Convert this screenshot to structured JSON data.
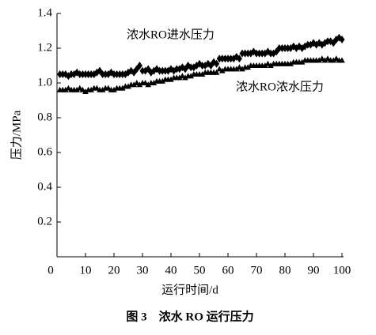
{
  "chart_data": {
    "type": "scatter",
    "caption": "图 3　浓水 RO 运行压力",
    "x_label": "运行时间/d",
    "y_label": "压力/MPa",
    "xlim": [
      0,
      100
    ],
    "xticks": [
      0,
      10,
      20,
      30,
      40,
      50,
      60,
      70,
      80,
      90,
      100
    ],
    "ylim": [
      0,
      1.4
    ],
    "yticks": [
      0.2,
      0.4,
      0.6,
      0.8,
      {
        "value": 1,
        "label": "1.0"
      },
      1.2,
      1.4
    ],
    "x": [
      1,
      2,
      3,
      4,
      5,
      6,
      7,
      8,
      9,
      10,
      11,
      12,
      13,
      14,
      15,
      16,
      17,
      18,
      19,
      20,
      21,
      22,
      23,
      24,
      25,
      26,
      27,
      28,
      29,
      30,
      31,
      32,
      33,
      34,
      35,
      36,
      37,
      38,
      39,
      40,
      41,
      42,
      43,
      44,
      45,
      46,
      47,
      48,
      49,
      50,
      51,
      52,
      53,
      54,
      55,
      56,
      57,
      58,
      59,
      60,
      61,
      62,
      63,
      64,
      65,
      66,
      67,
      68,
      69,
      70,
      71,
      72,
      73,
      74,
      75,
      76,
      77,
      78,
      79,
      80,
      81,
      82,
      83,
      84,
      85,
      86,
      87,
      88,
      89,
      90,
      91,
      92,
      93,
      94,
      95,
      96,
      97,
      98,
      99,
      100
    ],
    "series": [
      {
        "name": "浓水RO进水压力",
        "color": "#000000",
        "marker": "diamond",
        "values": [
          1.05,
          1.05,
          1.05,
          1.04,
          1.05,
          1.05,
          1.06,
          1.05,
          1.05,
          1.05,
          1.05,
          1.05,
          1.05,
          1.06,
          1.07,
          1.05,
          1.05,
          1.05,
          1.06,
          1.05,
          1.05,
          1.05,
          1.05,
          1.05,
          1.06,
          1.07,
          1.06,
          1.08,
          1.1,
          1.07,
          1.07,
          1.08,
          1.06,
          1.07,
          1.08,
          1.07,
          1.07,
          1.07,
          1.07,
          1.08,
          1.07,
          1.08,
          1.08,
          1.09,
          1.08,
          1.1,
          1.09,
          1.09,
          1.1,
          1.11,
          1.1,
          1.1,
          1.11,
          1.1,
          1.12,
          1.11,
          1.14,
          1.14,
          1.14,
          1.14,
          1.14,
          1.14,
          1.15,
          1.14,
          1.17,
          1.17,
          1.17,
          1.17,
          1.18,
          1.17,
          1.17,
          1.17,
          1.17,
          1.18,
          1.17,
          1.17,
          1.18,
          1.2,
          1.2,
          1.2,
          1.2,
          1.2,
          1.21,
          1.2,
          1.21,
          1.2,
          1.21,
          1.22,
          1.22,
          1.23,
          1.22,
          1.23,
          1.22,
          1.23,
          1.24,
          1.24,
          1.23,
          1.25,
          1.26,
          1.25
        ]
      },
      {
        "name": "浓水RO浓水压力",
        "color": "#000000",
        "marker": "triangle",
        "values": [
          0.96,
          0.96,
          0.96,
          0.97,
          0.96,
          0.96,
          0.96,
          0.97,
          0.96,
          0.95,
          0.96,
          0.96,
          0.97,
          0.97,
          0.96,
          0.96,
          0.97,
          0.97,
          0.96,
          0.96,
          0.97,
          0.97,
          0.97,
          0.98,
          0.98,
          0.99,
          0.99,
          1.0,
          0.99,
          1.0,
          1.0,
          0.99,
          1.0,
          1.0,
          1.01,
          1.01,
          1.01,
          1.02,
          1.02,
          1.02,
          1.03,
          1.03,
          1.03,
          1.04,
          1.03,
          1.04,
          1.04,
          1.05,
          1.05,
          1.05,
          1.05,
          1.06,
          1.06,
          1.06,
          1.06,
          1.06,
          1.08,
          1.07,
          1.08,
          1.08,
          1.08,
          1.08,
          1.08,
          1.09,
          1.08,
          1.09,
          1.09,
          1.1,
          1.1,
          1.1,
          1.1,
          1.1,
          1.1,
          1.11,
          1.1,
          1.11,
          1.11,
          1.11,
          1.11,
          1.11,
          1.11,
          1.11,
          1.12,
          1.12,
          1.12,
          1.12,
          1.13,
          1.13,
          1.13,
          1.13,
          1.13,
          1.13,
          1.14,
          1.13,
          1.14,
          1.13,
          1.13,
          1.14,
          1.13,
          1.13
        ]
      }
    ]
  }
}
